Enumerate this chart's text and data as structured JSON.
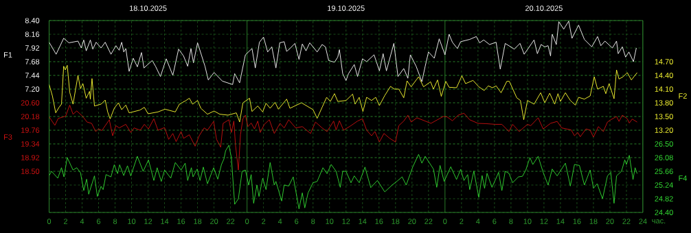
{
  "chart_data": [
    {
      "type": "line",
      "xlabel": "час.",
      "ylabel": "F1",
      "y2label": "F2",
      "xlim": [
        "2025-10-18T00:00",
        "2025-10-21T00:00"
      ],
      "xticks": [
        {
          "value": "2025-10-18T00:00",
          "label": "0"
        },
        {
          "value": "2025-10-18T02:00",
          "label": "2"
        },
        {
          "value": "2025-10-18T04:00",
          "label": "4"
        },
        {
          "value": "2025-10-18T06:00",
          "label": "6"
        },
        {
          "value": "2025-10-18T08:00",
          "label": "8"
        },
        {
          "value": "2025-10-18T10:00",
          "label": "10"
        },
        {
          "value": "2025-10-18T12:00",
          "label": "12"
        },
        {
          "value": "2025-10-18T14:00",
          "label": "14"
        },
        {
          "value": "2025-10-18T16:00",
          "label": "16"
        },
        {
          "value": "2025-10-18T18:00",
          "label": "18"
        },
        {
          "value": "2025-10-18T20:00",
          "label": "20"
        },
        {
          "value": "2025-10-18T22:00",
          "label": "22"
        },
        {
          "value": "2025-10-19T00:00",
          "label": "0"
        },
        {
          "value": "2025-10-19T02:00",
          "label": "2"
        },
        {
          "value": "2025-10-19T04:00",
          "label": "4"
        },
        {
          "value": "2025-10-19T06:00",
          "label": "6"
        },
        {
          "value": "2025-10-19T08:00",
          "label": "8"
        },
        {
          "value": "2025-10-19T10:00",
          "label": "10"
        },
        {
          "value": "2025-10-19T12:00",
          "label": "12"
        },
        {
          "value": "2025-10-19T14:00",
          "label": "14"
        },
        {
          "value": "2025-10-19T16:00",
          "label": "16"
        },
        {
          "value": "2025-10-19T18:00",
          "label": "18"
        },
        {
          "value": "2025-10-19T20:00",
          "label": "20"
        },
        {
          "value": "2025-10-19T22:00",
          "label": "22"
        },
        {
          "value": "2025-10-20T00:00",
          "label": "0"
        },
        {
          "value": "2025-10-20T02:00",
          "label": "2"
        },
        {
          "value": "2025-10-20T04:00",
          "label": "4"
        },
        {
          "value": "2025-10-20T06:00",
          "label": "6"
        },
        {
          "value": "2025-10-20T08:00",
          "label": "8"
        },
        {
          "value": "2025-10-20T10:00",
          "label": "10"
        },
        {
          "value": "2025-10-20T12:00",
          "label": "12"
        },
        {
          "value": "2025-10-20T14:00",
          "label": "14"
        },
        {
          "value": "2025-10-20T16:00",
          "label": "16"
        },
        {
          "value": "2025-10-20T18:00",
          "label": "18"
        },
        {
          "value": "2025-10-20T20:00",
          "label": "20"
        },
        {
          "value": "2025-10-20T22:00",
          "label": "22"
        },
        {
          "value": "2025-10-21T00:00",
          "label": "24"
        }
      ],
      "x2lim": [
        "2025-10-18T00:00",
        "2025-10-21T00:00"
      ],
      "x2ticks": [
        {
          "value": "2025-10-18T12:00",
          "label": "18.10.2025"
        },
        {
          "value": "2025-10-19T12:00",
          "label": "19.10.2025"
        },
        {
          "value": "2025-10-20T12:00",
          "label": "20.10.2025"
        }
      ],
      "ylim": [
        5.04,
        8.4
      ],
      "yticks": [
        {
          "value": 7.2,
          "label": "7.20"
        },
        7.44,
        7.68,
        7.92,
        8.16,
        {
          "value": 8.4,
          "label": "8.40"
        }
      ],
      "y2lim": [
        11.4,
        15.6
      ],
      "y2ticks": [
        {
          "value": 13.2,
          "label": "13.20"
        },
        {
          "value": 13.5,
          "label": "13.50"
        },
        {
          "value": 13.8,
          "label": "13.80"
        },
        {
          "value": 14.1,
          "label": "14.10"
        },
        {
          "value": 14.4,
          "label": "14.40"
        },
        {
          "value": 14.7,
          "label": "14.70"
        }
      ],
      "grid": true,
      "series": [
        {
          "color": "#ffffff",
          "x": [
            "2025-10-18T00:00",
            "2025-10-18T00:51",
            "2025-10-18T01:46",
            "2025-10-18T02:24",
            "2025-10-18T03:30",
            "2025-10-18T03:54",
            "2025-10-18T04:12",
            "2025-10-18T04:30",
            "2025-10-18T05:00",
            "2025-10-18T05:18",
            "2025-10-18T05:42",
            "2025-10-18T06:18",
            "2025-10-18T06:48",
            "2025-10-18T07:30",
            "2025-10-18T08:06",
            "2025-10-18T08:30",
            "2025-10-18T08:48",
            "2025-10-18T09:03",
            "2025-10-18T09:18",
            "2025-10-18T09:42",
            "2025-10-18T10:12",
            "2025-10-18T10:42",
            "2025-10-18T11:12",
            "2025-10-18T11:30",
            "2025-10-18T12:30",
            "2025-10-18T12:54",
            "2025-10-18T13:30",
            "2025-10-18T14:12",
            "2025-10-18T15:00",
            "2025-10-18T15:42",
            "2025-10-18T16:18",
            "2025-10-18T16:48",
            "2025-10-18T17:12",
            "2025-10-18T17:30",
            "2025-10-18T18:00",
            "2025-10-18T18:54",
            "2025-10-18T19:18",
            "2025-10-18T20:00",
            "2025-10-18T21:00",
            "2025-10-18T22:15",
            "2025-10-18T22:30",
            "2025-10-18T23:06",
            "2025-10-18T23:48",
            "2025-10-19T00:36",
            "2025-10-19T01:00",
            "2025-10-19T01:30",
            "2025-10-19T02:00",
            "2025-10-19T02:30",
            "2025-10-19T03:00",
            "2025-10-19T03:30",
            "2025-10-19T03:58",
            "2025-10-19T04:30",
            "2025-10-19T04:48",
            "2025-10-19T05:12",
            "2025-10-19T05:48",
            "2025-10-19T06:18",
            "2025-10-19T06:42",
            "2025-10-19T07:09",
            "2025-10-19T07:36",
            "2025-10-19T08:30",
            "2025-10-19T09:06",
            "2025-10-19T09:30",
            "2025-10-19T09:54",
            "2025-10-19T10:36",
            "2025-10-19T11:00",
            "2025-10-19T11:12",
            "2025-10-19T11:36",
            "2025-10-19T12:00",
            "2025-10-19T12:18",
            "2025-10-19T13:00",
            "2025-10-19T13:24",
            "2025-10-19T14:00",
            "2025-10-19T14:30",
            "2025-10-19T15:24",
            "2025-10-19T16:03",
            "2025-10-19T16:30",
            "2025-10-19T16:54",
            "2025-10-19T17:48",
            "2025-10-19T18:18",
            "2025-10-19T19:00",
            "2025-10-19T19:30",
            "2025-10-19T19:48",
            "2025-10-19T20:30",
            "2025-10-19T21:12",
            "2025-10-19T21:36",
            "2025-10-19T22:00",
            "2025-10-19T22:42",
            "2025-10-19T23:18",
            "2025-10-20T00:00",
            "2025-10-20T00:30",
            "2025-10-20T00:54",
            "2025-10-20T01:30",
            "2025-10-20T01:54",
            "2025-10-20T03:00",
            "2025-10-20T03:48",
            "2025-10-20T04:12",
            "2025-10-20T04:42",
            "2025-10-20T05:24",
            "2025-10-20T06:12",
            "2025-10-20T06:42",
            "2025-10-20T07:18",
            "2025-10-20T08:24",
            "2025-10-20T09:06",
            "2025-10-20T09:36",
            "2025-10-20T10:48",
            "2025-10-20T11:12",
            "2025-10-20T11:39",
            "2025-10-20T12:06",
            "2025-10-20T12:30",
            "2025-10-20T12:48",
            "2025-10-20T13:00",
            "2025-10-20T13:30",
            "2025-10-20T13:48",
            "2025-10-20T14:24",
            "2025-10-20T15:00",
            "2025-10-20T15:24",
            "2025-10-20T16:12",
            "2025-10-20T16:54",
            "2025-10-20T17:48",
            "2025-10-20T18:30",
            "2025-10-20T18:54",
            "2025-10-20T19:24",
            "2025-10-20T20:18",
            "2025-10-20T20:48",
            "2025-10-20T21:00",
            "2025-10-20T21:30",
            "2025-10-20T21:54",
            "2025-10-20T22:18",
            "2025-10-20T22:51",
            "2025-10-20T23:12"
          ],
          "values": [
            8.02,
            7.81,
            8.09,
            8.01,
            8.04,
            7.92,
            8.06,
            7.87,
            8.06,
            7.9,
            8.02,
            7.92,
            8.02,
            7.81,
            7.96,
            7.88,
            8.02,
            7.85,
            7.91,
            7.51,
            7.74,
            7.59,
            7.84,
            7.57,
            7.7,
            7.6,
            7.42,
            7.73,
            7.44,
            7.9,
            7.78,
            7.6,
            7.91,
            7.66,
            8.01,
            7.6,
            7.36,
            7.49,
            7.34,
            7.28,
            7.47,
            7.31,
            7.8,
            7.91,
            7.57,
            8.02,
            8.11,
            7.85,
            7.94,
            7.57,
            8.01,
            8.03,
            7.86,
            7.91,
            8.0,
            7.72,
            7.99,
            7.87,
            8.01,
            7.85,
            7.98,
            7.94,
            7.7,
            7.67,
            7.76,
            7.89,
            7.47,
            7.35,
            7.47,
            7.63,
            7.42,
            7.73,
            7.68,
            7.8,
            7.52,
            7.82,
            7.52,
            8.0,
            7.42,
            7.56,
            7.39,
            7.8,
            7.6,
            7.33,
            7.6,
            7.85,
            7.74,
            8.08,
            7.8,
            8.16,
            8.02,
            7.91,
            8.03,
            8.07,
            8.12,
            8.01,
            8.06,
            7.98,
            8.02,
            7.55,
            8.0,
            7.9,
            8.0,
            7.81,
            8.06,
            7.82,
            7.98,
            7.94,
            7.96,
            7.78,
            8.16,
            7.98,
            8.38,
            8.25,
            8.39,
            8.09,
            8.32,
            8.07,
            7.94,
            8.12,
            7.96,
            8.04,
            7.92,
            8.04,
            7.82,
            7.94,
            7.76,
            7.85,
            7.68,
            7.92
          ]
        },
        {
          "color": "#ffff33",
          "axis": "y2",
          "x": [
            "2025-10-18T00:00",
            "2025-10-18T00:24",
            "2025-10-18T00:48",
            "2025-10-18T01:12",
            "2025-10-18T01:30",
            "2025-10-18T01:46",
            "2025-10-18T01:58",
            "2025-10-18T02:12",
            "2025-10-18T02:30",
            "2025-10-18T02:54",
            "2025-10-18T03:30",
            "2025-10-18T03:48",
            "2025-10-18T04:06",
            "2025-10-18T04:30",
            "2025-10-18T04:54",
            "2025-10-18T05:00",
            "2025-10-18T05:12",
            "2025-10-18T05:30",
            "2025-10-18T06:18",
            "2025-10-18T06:48",
            "2025-10-18T07:06",
            "2025-10-18T07:24",
            "2025-10-18T07:54",
            "2025-10-18T08:24",
            "2025-10-18T08:48",
            "2025-10-18T09:18",
            "2025-10-18T09:42",
            "2025-10-18T11:00",
            "2025-10-18T11:33",
            "2025-10-18T12:00",
            "2025-10-18T13:12",
            "2025-10-18T14:03",
            "2025-10-18T15:18",
            "2025-10-18T15:48",
            "2025-10-18T16:36",
            "2025-10-18T17:00",
            "2025-10-18T17:24",
            "2025-10-18T18:00",
            "2025-10-18T18:24",
            "2025-10-18T19:12",
            "2025-10-18T20:00",
            "2025-10-18T20:42",
            "2025-10-18T21:42",
            "2025-10-18T22:42",
            "2025-10-18T23:06",
            "2025-10-18T23:30",
            "2025-10-19T00:18",
            "2025-10-19T00:36",
            "2025-10-19T01:18",
            "2025-10-19T01:54",
            "2025-10-19T02:18",
            "2025-10-19T02:48",
            "2025-10-19T03:24",
            "2025-10-19T03:48",
            "2025-10-19T04:48",
            "2025-10-19T05:12",
            "2025-10-19T06:36",
            "2025-10-19T08:00",
            "2025-10-19T08:30",
            "2025-10-19T09:06",
            "2025-10-19T09:39",
            "2025-10-19T10:06",
            "2025-10-19T10:36",
            "2025-10-19T11:00",
            "2025-10-19T12:00",
            "2025-10-19T12:48",
            "2025-10-19T13:06",
            "2025-10-19T13:36",
            "2025-10-19T14:03",
            "2025-10-19T14:30",
            "2025-10-19T15:06",
            "2025-10-19T15:36",
            "2025-10-19T16:03",
            "2025-10-19T16:42",
            "2025-10-19T17:24",
            "2025-10-19T17:51",
            "2025-10-19T18:24",
            "2025-10-19T19:00",
            "2025-10-19T19:24",
            "2025-10-19T19:54",
            "2025-10-19T20:48",
            "2025-10-19T21:24",
            "2025-10-19T22:15",
            "2025-10-19T22:36",
            "2025-10-19T23:06",
            "2025-10-19T23:33",
            "2025-10-20T00:06",
            "2025-10-20T00:30",
            "2025-10-20T01:24",
            "2025-10-20T02:03",
            "2025-10-20T02:30",
            "2025-10-20T03:24",
            "2025-10-20T04:06",
            "2025-10-20T04:45",
            "2025-10-20T05:15",
            "2025-10-20T05:45",
            "2025-10-20T06:12",
            "2025-10-20T06:48",
            "2025-10-20T07:30",
            "2025-10-20T07:48",
            "2025-10-20T08:42",
            "2025-10-20T09:09",
            "2025-10-20T09:33",
            "2025-10-20T10:00",
            "2025-10-20T10:48",
            "2025-10-20T11:36",
            "2025-10-20T12:06",
            "2025-10-20T12:42",
            "2025-10-20T13:18",
            "2025-10-20T13:42",
            "2025-10-20T14:00",
            "2025-10-20T14:36",
            "2025-10-20T15:12",
            "2025-10-20T15:48",
            "2025-10-20T16:12",
            "2025-10-20T16:54",
            "2025-10-20T17:36",
            "2025-10-20T18:06",
            "2025-10-20T18:30",
            "2025-10-20T19:12",
            "2025-10-20T19:30",
            "2025-10-20T19:54",
            "2025-10-20T20:30",
            "2025-10-20T20:48",
            "2025-10-20T21:06",
            "2025-10-20T21:36",
            "2025-10-20T22:06",
            "2025-10-20T22:36",
            "2025-10-20T23:18"
          ],
          "values": [
            14.2,
            13.95,
            13.58,
            13.7,
            13.77,
            14.6,
            14.52,
            14.62,
            14.03,
            13.77,
            14.4,
            14.11,
            14.22,
            13.9,
            14.05,
            13.88,
            14.33,
            13.73,
            13.77,
            13.86,
            13.6,
            13.45,
            13.68,
            13.8,
            13.65,
            13.75,
            13.58,
            13.64,
            13.7,
            13.56,
            13.6,
            13.66,
            13.6,
            13.77,
            13.85,
            13.9,
            13.77,
            13.85,
            13.68,
            13.55,
            13.62,
            13.55,
            13.53,
            13.58,
            13.38,
            13.8,
            13.9,
            13.61,
            13.73,
            13.6,
            13.79,
            13.68,
            13.81,
            13.66,
            13.88,
            13.68,
            13.8,
            13.65,
            13.46,
            13.7,
            13.92,
            13.83,
            14.0,
            13.83,
            13.85,
            13.99,
            13.77,
            13.92,
            13.61,
            13.92,
            13.85,
            13.92,
            13.74,
            13.96,
            14.16,
            14.1,
            14.1,
            13.91,
            14.28,
            14.15,
            14.37,
            14.15,
            14.26,
            14.1,
            14.3,
            13.94,
            14.27,
            14.14,
            14.13,
            14.39,
            14.22,
            14.29,
            14.15,
            14.07,
            14.17,
            14.13,
            14.17,
            14.02,
            14.27,
            14.27,
            13.91,
            13.85,
            13.43,
            13.85,
            13.77,
            14.02,
            13.8,
            14.01,
            13.77,
            14.0,
            13.83,
            14.02,
            13.85,
            13.75,
            13.92,
            13.88,
            13.95,
            14.37,
            14.1,
            14.16,
            14.0,
            14.22,
            13.89,
            14.52,
            14.32,
            14.37,
            14.46,
            14.3,
            14.46
          ]
        }
      ]
    },
    {
      "type": "line",
      "ylabel": "F3",
      "y2label": "F4",
      "xlim": [
        "2025-10-18T00:00",
        "2025-10-21T00:00"
      ],
      "ylim": [
        17.24,
        23.12
      ],
      "yticks": [
        {
          "value": 18.5,
          "label": "18.50"
        },
        18.92,
        19.34,
        19.76,
        20.18,
        {
          "value": 20.6,
          "label": "20.60"
        }
      ],
      "y2lim": [
        24.4,
        30.28
      ],
      "y2ticks": [
        {
          "value": 24.4,
          "label": "24.40"
        },
        24.82,
        25.24,
        25.66,
        26.08,
        {
          "value": 26.5,
          "label": "26.50"
        }
      ],
      "grid": "y",
      "tick_labels": "y",
      "series": [
        {
          "color": "#cc1111",
          "x": [
            "2025-10-18T00:00",
            "2025-10-18T00:42",
            "2025-10-18T01:06",
            "2025-10-18T02:00",
            "2025-10-18T02:30",
            "2025-10-18T02:54",
            "2025-10-18T03:21",
            "2025-10-18T04:03",
            "2025-10-18T04:36",
            "2025-10-18T05:09",
            "2025-10-18T05:39",
            "2025-10-18T06:00",
            "2025-10-18T06:24",
            "2025-10-18T07:18",
            "2025-10-18T07:42",
            "2025-10-18T08:06",
            "2025-10-18T08:30",
            "2025-10-18T09:18",
            "2025-10-18T09:54",
            "2025-10-18T10:18",
            "2025-10-18T11:03",
            "2025-10-18T11:33",
            "2025-10-18T12:03",
            "2025-10-18T12:42",
            "2025-10-18T13:12",
            "2025-10-18T14:00",
            "2025-10-18T14:30",
            "2025-10-18T15:00",
            "2025-10-18T15:24",
            "2025-10-18T16:00",
            "2025-10-18T16:18",
            "2025-10-18T17:00",
            "2025-10-18T17:42",
            "2025-10-18T18:12",
            "2025-10-18T18:48",
            "2025-10-18T19:12",
            "2025-10-18T19:57",
            "2025-10-18T20:18",
            "2025-10-18T20:48",
            "2025-10-18T21:06",
            "2025-10-18T21:48",
            "2025-10-18T22:06",
            "2025-10-18T22:24",
            "2025-10-18T22:36",
            "2025-10-18T22:57",
            "2025-10-18T23:12",
            "2025-10-18T23:30",
            "2025-10-18T23:48",
            "2025-10-19T00:06",
            "2025-10-19T00:30",
            "2025-10-19T00:54",
            "2025-10-19T01:18",
            "2025-10-19T01:36",
            "2025-10-19T02:06",
            "2025-10-19T02:42",
            "2025-10-19T03:18",
            "2025-10-19T04:00",
            "2025-10-19T04:30",
            "2025-10-19T05:03",
            "2025-10-19T05:54",
            "2025-10-19T06:42",
            "2025-10-19T07:42",
            "2025-10-19T08:18",
            "2025-10-19T09:06",
            "2025-10-19T09:42",
            "2025-10-19T10:30",
            "2025-10-19T10:48",
            "2025-10-19T11:12",
            "2025-10-19T11:42",
            "2025-10-19T12:36",
            "2025-10-19T13:24",
            "2025-10-19T14:00",
            "2025-10-19T14:30",
            "2025-10-19T15:06",
            "2025-10-19T15:30",
            "2025-10-19T16:03",
            "2025-10-19T16:36",
            "2025-10-19T17:18",
            "2025-10-19T18:00",
            "2025-10-19T18:24",
            "2025-10-19T19:00",
            "2025-10-19T19:30",
            "2025-10-19T19:54",
            "2025-10-19T20:36",
            "2025-10-19T22:18",
            "2025-10-19T23:48",
            "2025-10-20T00:15",
            "2025-10-20T00:54",
            "2025-10-20T01:36",
            "2025-10-20T02:18",
            "2025-10-20T03:00",
            "2025-10-20T04:00",
            "2025-10-20T05:00",
            "2025-10-20T06:06",
            "2025-10-20T06:54",
            "2025-10-20T07:45",
            "2025-10-20T08:12",
            "2025-10-20T09:00",
            "2025-10-20T10:00",
            "2025-10-20T10:24",
            "2025-10-20T11:18",
            "2025-10-20T11:54",
            "2025-10-20T12:48",
            "2025-10-20T13:36",
            "2025-10-20T14:09",
            "2025-10-20T15:18",
            "2025-10-20T15:42",
            "2025-10-20T16:06",
            "2025-10-20T16:24",
            "2025-10-20T17:06",
            "2025-10-20T17:36",
            "2025-10-20T18:00",
            "2025-10-20T18:36",
            "2025-10-20T19:12",
            "2025-10-20T19:42",
            "2025-10-20T20:06",
            "2025-10-20T20:48",
            "2025-10-20T21:06",
            "2025-10-20T21:30",
            "2025-10-20T22:06",
            "2025-10-20T22:21",
            "2025-10-20T22:42",
            "2025-10-20T23:18"
          ],
          "values": [
            20.17,
            19.91,
            20.12,
            20.19,
            20.53,
            20.25,
            20.35,
            20.19,
            20.01,
            19.97,
            19.72,
            19.8,
            19.75,
            20.08,
            19.59,
            19.9,
            19.83,
            19.94,
            19.69,
            19.83,
            19.76,
            19.94,
            19.8,
            20.11,
            19.76,
            19.84,
            19.48,
            19.66,
            19.41,
            19.72,
            19.51,
            19.62,
            19.27,
            19.59,
            19.83,
            19.76,
            20.03,
            19.48,
            19.24,
            19.97,
            20.08,
            19.69,
            20.04,
            19.3,
            18.54,
            19.62,
            20.11,
            20.22,
            19.87,
            19.98,
            19.8,
            20.04,
            19.69,
            19.94,
            20.08,
            19.66,
            19.97,
            19.83,
            20.08,
            19.83,
            19.87,
            19.66,
            20.01,
            19.83,
            19.72,
            20.04,
            19.77,
            20.05,
            19.76,
            19.9,
            20.04,
            20.11,
            19.76,
            19.59,
            19.72,
            19.4,
            19.66,
            19.51,
            19.4,
            19.9,
            20.04,
            20.22,
            20.01,
            20.14,
            19.97,
            20.18,
            20.17,
            20.05,
            20.22,
            20.28,
            20.08,
            19.97,
            19.96,
            19.94,
            19.94,
            19.72,
            19.94,
            19.72,
            19.94,
            19.9,
            20.14,
            19.8,
            19.97,
            20.03,
            19.83,
            19.77,
            19.59,
            19.69,
            19.56,
            19.8,
            19.76,
            19.55,
            19.87,
            19.72,
            20.01,
            20.08,
            20.18,
            20.03,
            20.22,
            20.11,
            19.98,
            20.1,
            20.01
          ]
        },
        {
          "color": "#33dd33",
          "axis": "y2",
          "x": [
            "2025-10-18T00:00",
            "2025-10-18T00:18",
            "2025-10-18T01:03",
            "2025-10-18T01:30",
            "2025-10-18T01:48",
            "2025-10-18T02:12",
            "2025-10-18T02:54",
            "2025-10-18T03:21",
            "2025-10-18T03:48",
            "2025-10-18T04:12",
            "2025-10-18T04:33",
            "2025-10-18T04:48",
            "2025-10-18T05:30",
            "2025-10-18T05:51",
            "2025-10-18T06:18",
            "2025-10-18T06:33",
            "2025-10-18T06:54",
            "2025-10-18T07:30",
            "2025-10-18T07:54",
            "2025-10-18T08:18",
            "2025-10-18T08:33",
            "2025-10-18T09:03",
            "2025-10-18T09:30",
            "2025-10-18T09:54",
            "2025-10-18T10:42",
            "2025-10-18T11:24",
            "2025-10-18T12:03",
            "2025-10-18T12:42",
            "2025-10-18T13:06",
            "2025-10-18T13:36",
            "2025-10-18T14:00",
            "2025-10-18T14:45",
            "2025-10-18T15:18",
            "2025-10-18T16:00",
            "2025-10-18T16:30",
            "2025-10-18T16:48",
            "2025-10-18T17:15",
            "2025-10-18T17:27",
            "2025-10-18T17:57",
            "2025-10-18T18:18",
            "2025-10-18T18:42",
            "2025-10-18T19:12",
            "2025-10-18T19:57",
            "2025-10-18T20:27",
            "2025-10-18T20:54",
            "2025-10-18T21:12",
            "2025-10-18T21:24",
            "2025-10-18T21:48",
            "2025-10-18T22:06",
            "2025-10-18T22:30",
            "2025-10-18T22:57",
            "2025-10-18T23:24",
            "2025-10-18T23:48",
            "2025-10-19T00:12",
            "2025-10-19T00:30",
            "2025-10-19T00:48",
            "2025-10-19T01:12",
            "2025-10-19T01:27",
            "2025-10-19T01:54",
            "2025-10-19T02:18",
            "2025-10-19T02:48",
            "2025-10-19T03:18",
            "2025-10-19T03:30",
            "2025-10-19T04:12",
            "2025-10-19T04:30",
            "2025-10-19T05:03",
            "2025-10-19T05:36",
            "2025-10-19T06:18",
            "2025-10-19T06:42",
            "2025-10-19T07:00",
            "2025-10-19T07:24",
            "2025-10-19T08:00",
            "2025-10-19T08:30",
            "2025-10-19T09:12",
            "2025-10-19T09:42",
            "2025-10-19T10:12",
            "2025-10-19T10:48",
            "2025-10-19T11:18",
            "2025-10-19T11:36",
            "2025-10-19T12:00",
            "2025-10-19T12:36",
            "2025-10-19T13:00",
            "2025-10-19T13:36",
            "2025-10-19T14:18",
            "2025-10-19T15:00",
            "2025-10-19T15:48",
            "2025-10-19T16:42",
            "2025-10-19T17:36",
            "2025-10-19T18:18",
            "2025-10-19T18:48",
            "2025-10-19T19:18",
            "2025-10-19T20:06",
            "2025-10-19T20:48",
            "2025-10-19T21:12",
            "2025-10-19T21:36",
            "2025-10-19T22:36",
            "2025-10-19T23:00",
            "2025-10-19T23:24",
            "2025-10-19T23:54",
            "2025-10-20T00:42",
            "2025-10-20T01:24",
            "2025-10-20T01:54",
            "2025-10-20T02:18",
            "2025-10-20T02:45",
            "2025-10-20T03:00",
            "2025-10-20T03:30",
            "2025-10-20T04:06",
            "2025-10-20T04:30",
            "2025-10-20T04:48",
            "2025-10-20T05:06",
            "2025-10-20T05:42",
            "2025-10-20T06:12",
            "2025-10-20T06:30",
            "2025-10-20T06:54",
            "2025-10-20T07:18",
            "2025-10-20T07:45",
            "2025-10-20T08:12",
            "2025-10-20T08:54",
            "2025-10-20T09:24",
            "2025-10-20T09:48",
            "2025-10-20T10:18",
            "2025-10-20T10:39",
            "2025-10-20T11:18",
            "2025-10-20T11:54",
            "2025-10-20T12:30",
            "2025-10-20T13:00",
            "2025-10-20T13:36",
            "2025-10-20T14:36",
            "2025-10-20T15:12",
            "2025-10-20T15:42",
            "2025-10-20T16:18",
            "2025-10-20T16:54",
            "2025-10-20T17:36",
            "2025-10-20T18:00",
            "2025-10-20T18:27",
            "2025-10-20T19:06",
            "2025-10-20T19:42",
            "2025-10-20T20:06",
            "2025-10-20T20:30",
            "2025-10-20T20:48",
            "2025-10-20T21:24",
            "2025-10-20T21:48",
            "2025-10-20T22:00",
            "2025-10-20T22:21",
            "2025-10-20T22:48",
            "2025-10-20T23:03",
            "2025-10-20T23:18"
          ],
          "values": [
            25.53,
            25.66,
            25.45,
            25.77,
            25.49,
            26.08,
            25.7,
            25.77,
            25.62,
            25.07,
            25.42,
            24.96,
            25.52,
            24.89,
            25.2,
            25.1,
            25.56,
            25.49,
            25.86,
            25.59,
            25.86,
            25.53,
            25.83,
            25.52,
            26.12,
            25.66,
            26.01,
            25.38,
            25.77,
            25.35,
            25.7,
            25.45,
            25.93,
            25.7,
            25.91,
            25.38,
            25.77,
            25.49,
            25.73,
            25.38,
            25.79,
            25.28,
            25.77,
            25.42,
            25.87,
            26.04,
            26.29,
            26.46,
            26.08,
            24.65,
            24.82,
            25.66,
            25.7,
            25.24,
            25.56,
            24.68,
            25.24,
            24.89,
            25.45,
            25.1,
            25.93,
            25.24,
            25.35,
            24.75,
            25.24,
            25.21,
            25.49,
            24.51,
            25.0,
            24.54,
            25.0,
            25.31,
            25.35,
            25.77,
            25.59,
            25.87,
            25.66,
            25.17,
            25.66,
            25.66,
            25.31,
            25.52,
            25.31,
            25.79,
            25.16,
            25.38,
            25.03,
            25.24,
            25.38,
            25.49,
            25.24,
            25.8,
            26.18,
            25.91,
            26.12,
            25.73,
            25.17,
            25.84,
            25.35,
            25.8,
            25.41,
            25.72,
            25.38,
            25.56,
            25.1,
            25.67,
            24.86,
            25.53,
            25.14,
            25.6,
            25.17,
            25.45,
            25.63,
            25.07,
            25.66,
            25.6,
            25.31,
            25.49,
            25.51,
            25.7,
            26.08,
            25.87,
            26.12,
            25.63,
            25.24,
            25.73,
            25.52,
            25.91,
            25.21,
            25.87,
            25.84,
            25.24,
            25.7,
            25.14,
            25.28,
            24.82,
            25.52,
            25.63,
            24.68,
            25.52,
            25.66,
            26.01,
            25.87,
            26.15,
            25.41,
            25.77,
            25.59
          ]
        }
      ]
    }
  ]
}
